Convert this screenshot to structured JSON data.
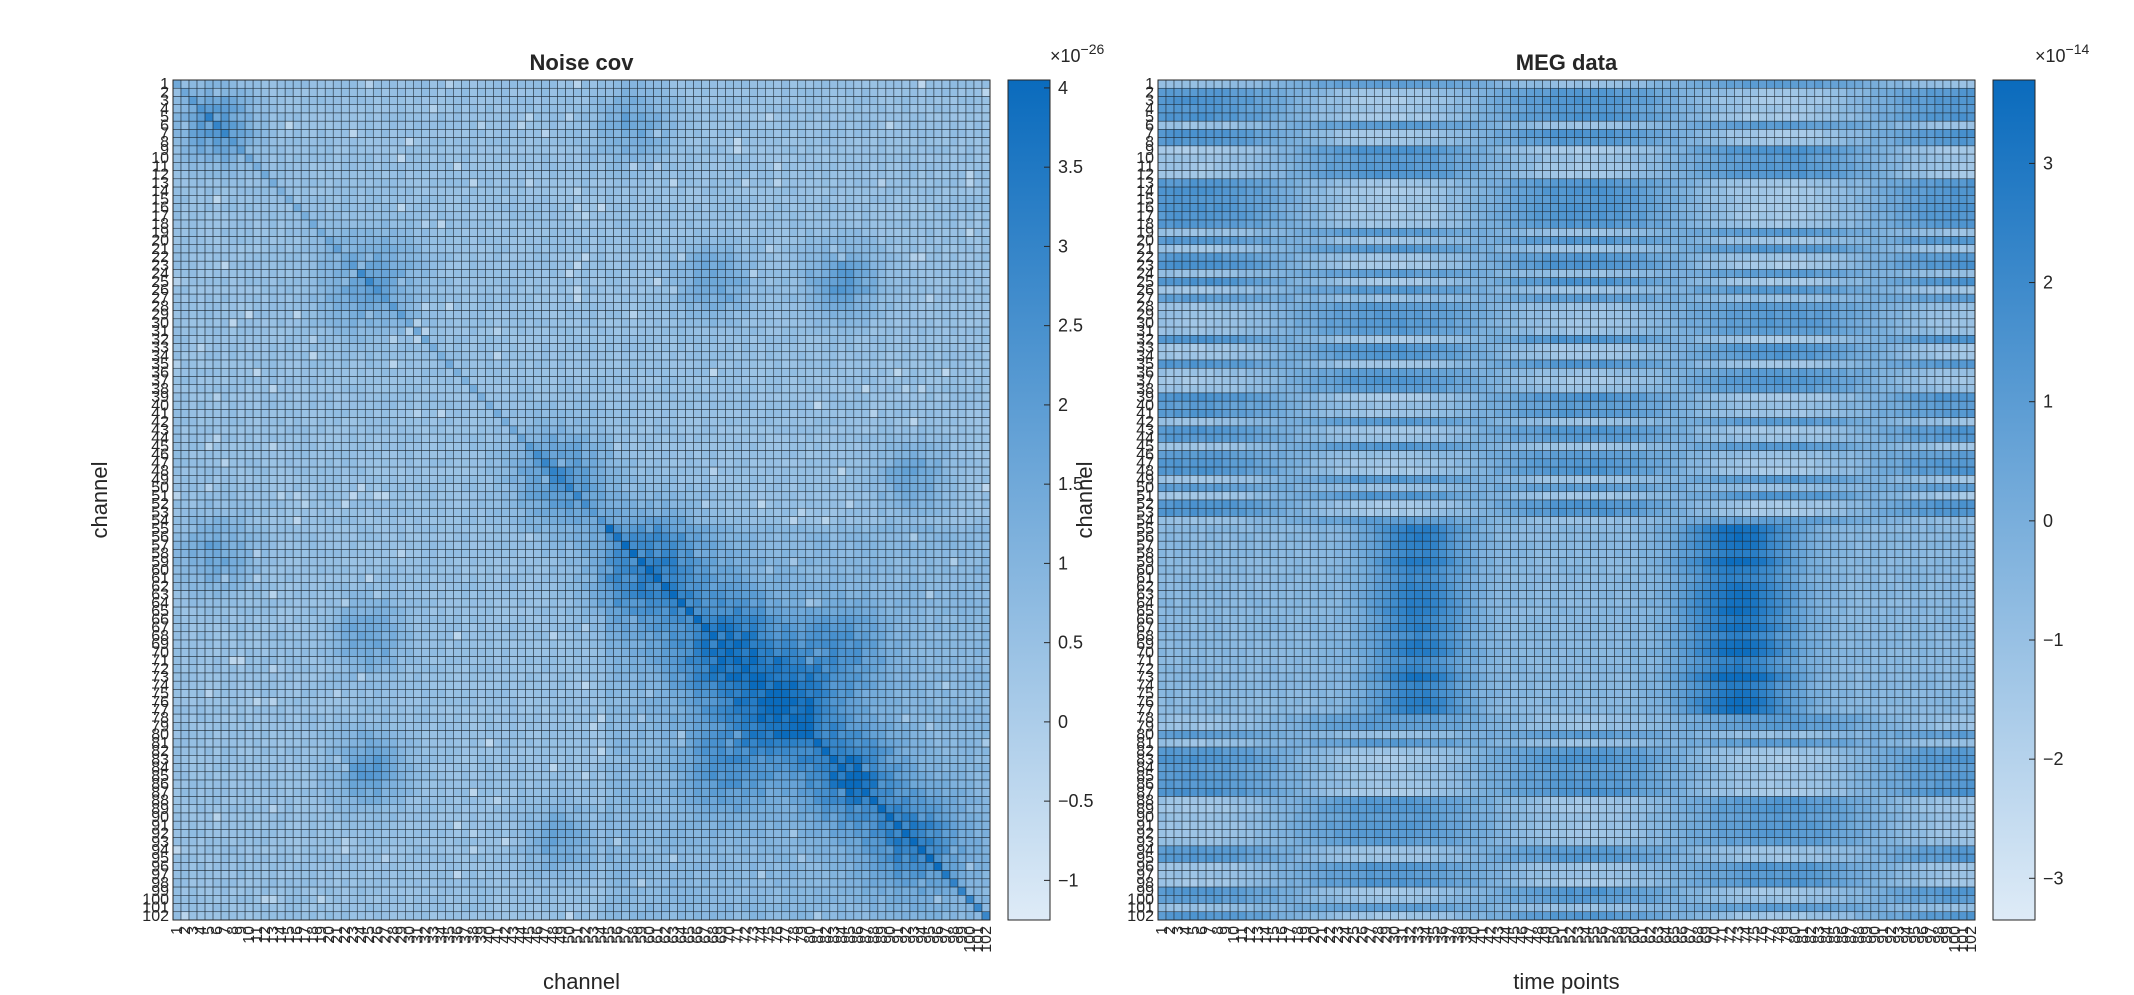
{
  "chart_data": [
    {
      "type": "heatmap",
      "title": "Noise cov",
      "xlabel": "channel",
      "ylabel": "channel",
      "rows": 102,
      "cols": 102,
      "x_tick_labels": "1..102",
      "y_tick_labels": "1..102",
      "colorbar": {
        "exponent_label": "×10",
        "exponent": "−26",
        "ticks": [
          "4",
          "3.5",
          "3",
          "2.5",
          "2",
          "1.5",
          "1",
          "0.5",
          "0",
          "−0.5",
          "−1"
        ],
        "tick_values": [
          4,
          3.5,
          3,
          2.5,
          2,
          1.5,
          1,
          0.5,
          0,
          -0.5,
          -1
        ],
        "range": [
          -1.25,
          4.05
        ]
      },
      "colormap": [
        "#deebf7",
        "#0a6bbd"
      ],
      "grid": true,
      "description_of_values": "Symmetric channel-by-channel noise covariance; mostly near 0.5–1.0e-26 with diagonal sub-blocks (channels ~55–102) rising to ~3–4e-26."
    },
    {
      "type": "heatmap",
      "title": "MEG data",
      "xlabel": "time points",
      "ylabel": "channel",
      "rows": 102,
      "cols": 102,
      "x_tick_labels": "1..102",
      "y_tick_labels": "1..102",
      "colorbar": {
        "exponent_label": "×10",
        "exponent": "−14",
        "ticks": [
          "3",
          "2",
          "1",
          "0",
          "−1",
          "−2",
          "−3"
        ],
        "tick_values": [
          3,
          2,
          1,
          0,
          -1,
          -2,
          -3
        ],
        "range": [
          -3.35,
          3.7
        ]
      },
      "colormap": [
        "#deebf7",
        "#0a6bbd"
      ],
      "grid": true,
      "description_of_values": "Channel-by-time MEG amplitudes with oscillatory structure along time and alternating channel bands; strongest values around channels 55–76 at time points ~28–38 and ~64–80."
    }
  ]
}
